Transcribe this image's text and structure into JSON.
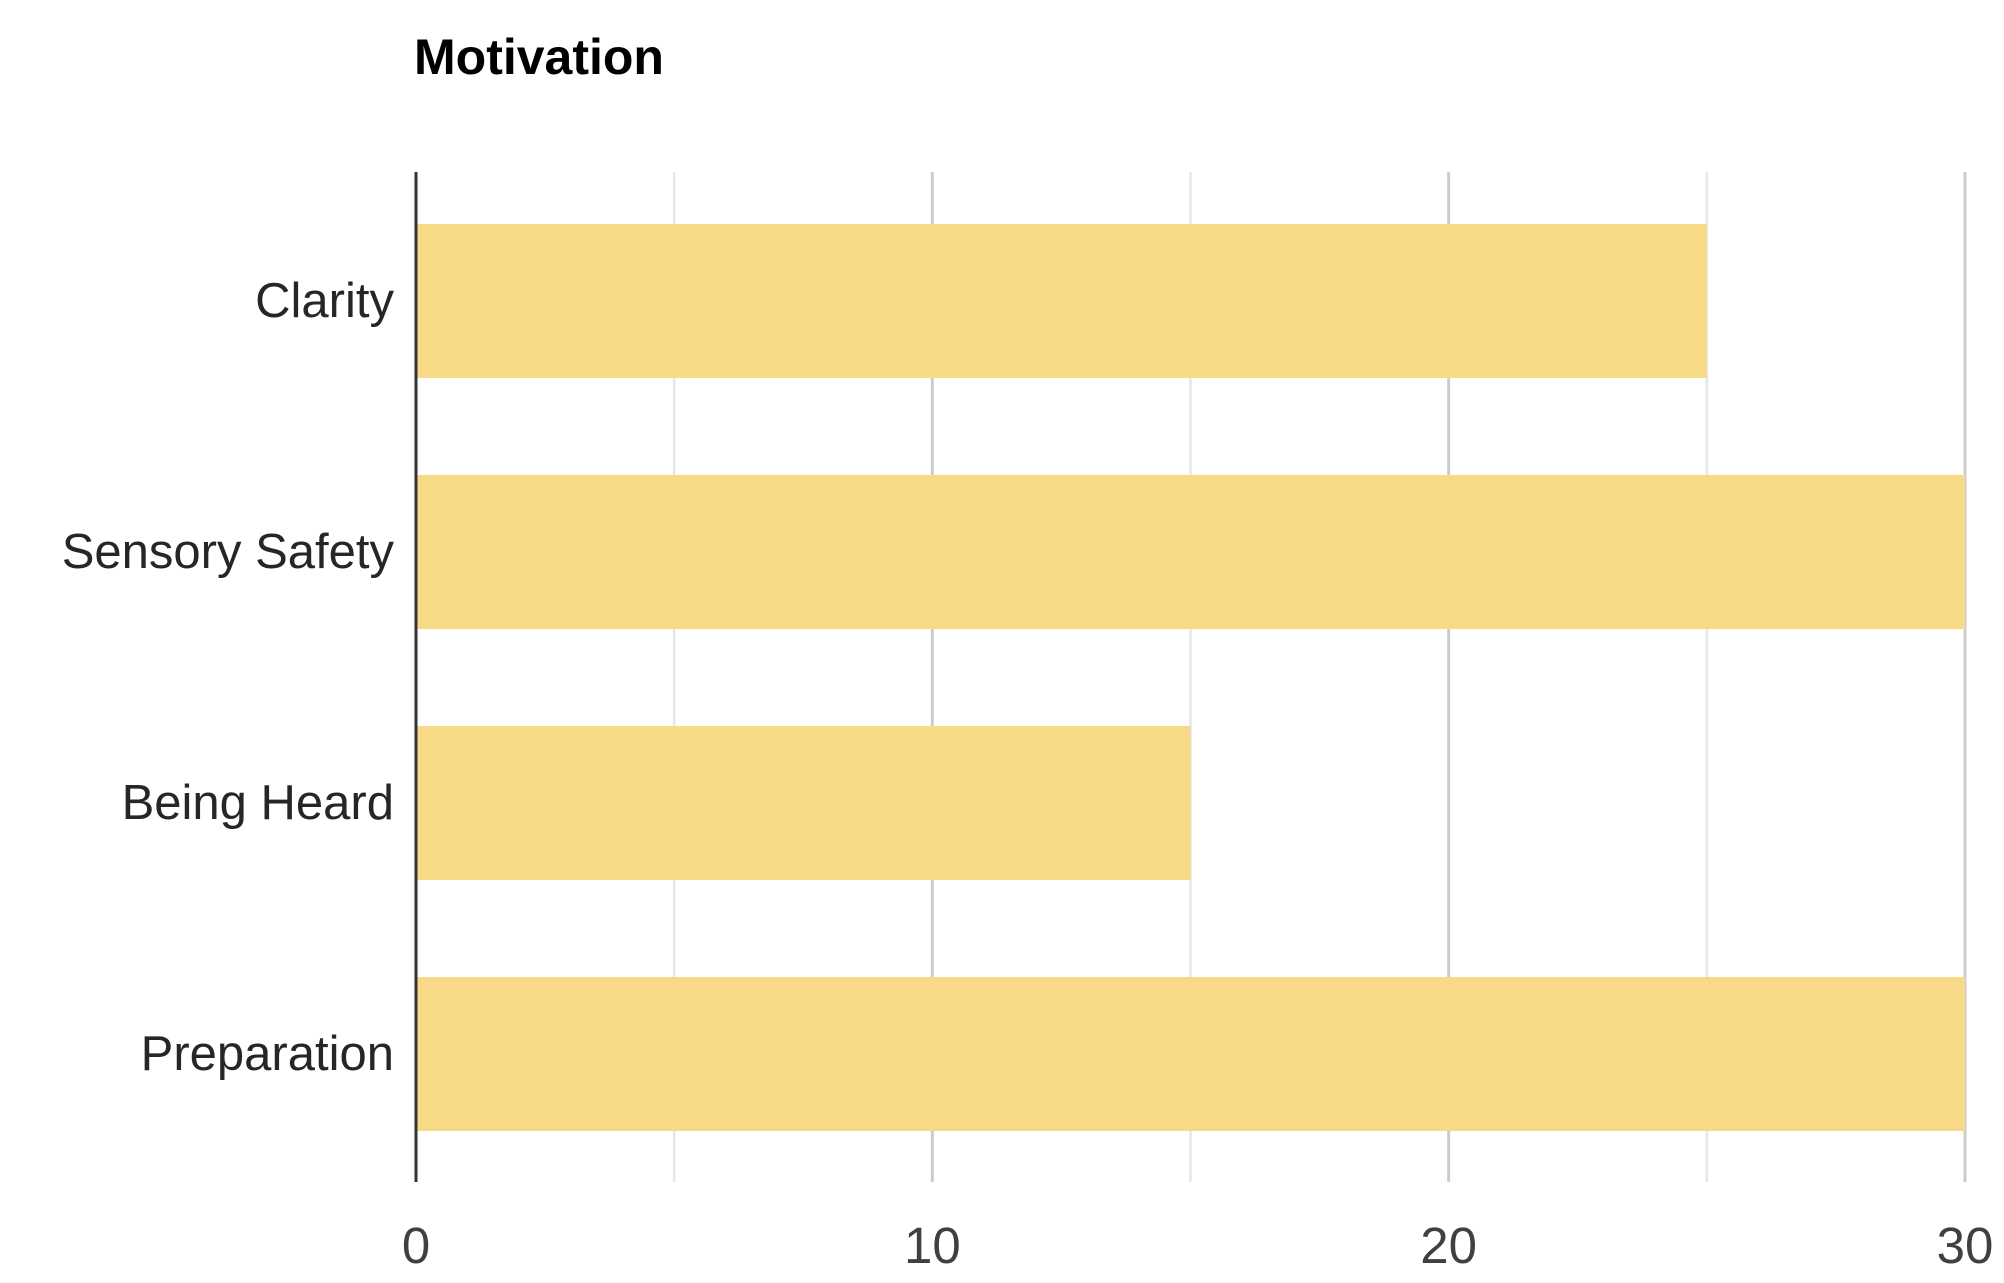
{
  "chart_data": {
    "type": "bar",
    "orientation": "horizontal",
    "title": "Motivation",
    "xlabel": "",
    "ylabel": "",
    "categories": [
      "Clarity",
      "Sensory Safety",
      "Being Heard",
      "Preparation"
    ],
    "values": [
      25,
      30,
      15,
      30
    ],
    "xlim": [
      0,
      30
    ],
    "major_ticks": [
      0,
      10,
      20,
      30
    ],
    "minor_gridlines": [
      5,
      15,
      25
    ],
    "grid": true,
    "bar_color": "#F7D987",
    "axis_color": "#333333"
  }
}
